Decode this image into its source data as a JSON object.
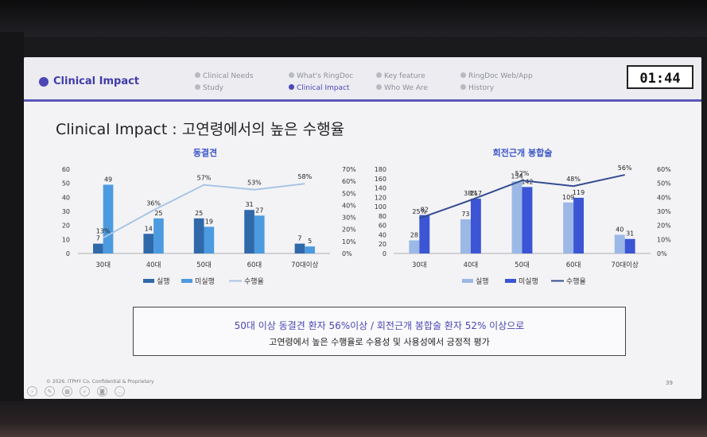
{
  "header": {
    "section_title": "Clinical Impact",
    "nav": [
      {
        "label": "Clinical Needs",
        "active": false
      },
      {
        "label": "Study",
        "active": false
      },
      {
        "label": "What's RingDoc",
        "active": false
      },
      {
        "label": "Clinical Impact",
        "active": true
      },
      {
        "label": "Key feature",
        "active": false
      },
      {
        "label": "Who We Are",
        "active": false
      },
      {
        "label": "RingDoc Web/App",
        "active": false
      },
      {
        "label": "History",
        "active": false
      }
    ],
    "timer": "01:44"
  },
  "slide_title": "Clinical Impact : 고연령에서의 높은 수행율",
  "colors": {
    "accent": "#4b47b6",
    "c1_exec": "#2f69a9",
    "c1_nonexec": "#4c9be0",
    "c1_rate": "#a9c4e4",
    "c2_exec": "#9bb8e6",
    "c2_nonexec": "#3b55d4",
    "c2_rate": "#334c8f"
  },
  "chart_data": [
    {
      "type": "bar",
      "title": "동결견",
      "categories": [
        "30대",
        "40대",
        "50대",
        "60대",
        "70대이상"
      ],
      "series": [
        {
          "name": "실행",
          "values": [
            7,
            14,
            25,
            31,
            7
          ]
        },
        {
          "name": "미실행",
          "values": [
            49,
            25,
            19,
            27,
            5
          ]
        },
        {
          "name": "수행율",
          "type": "line",
          "axis": "right",
          "values": [
            13,
            36,
            57,
            53,
            58
          ],
          "labels": [
            "13%",
            "36%",
            "57%",
            "53%",
            "58%"
          ]
        }
      ],
      "ylim": [
        0,
        60
      ],
      "yticks": [
        "0",
        "10",
        "20",
        "30",
        "40",
        "50",
        "60"
      ],
      "y2lim": [
        0,
        70
      ],
      "y2ticks": [
        "0%",
        "10%",
        "20%",
        "30%",
        "40%",
        "50%",
        "60%",
        "70%"
      ],
      "legend": "bottom"
    },
    {
      "type": "bar",
      "title": "회전근개 봉합술",
      "categories": [
        "30대",
        "40대",
        "50대",
        "60대",
        "70대이상"
      ],
      "series": [
        {
          "name": "실행",
          "values": [
            28,
            73,
            154,
            109,
            40
          ]
        },
        {
          "name": "미실행",
          "values": [
            82,
            117,
            142,
            119,
            31
          ]
        },
        {
          "name": "수행율",
          "type": "line",
          "axis": "right",
          "values": [
            25,
            38,
            52,
            48,
            56
          ],
          "labels": [
            "25%",
            "38%",
            "52%",
            "48%",
            "56%"
          ]
        }
      ],
      "ylim": [
        0,
        180
      ],
      "yticks": [
        "0",
        "20",
        "40",
        "60",
        "80",
        "100",
        "120",
        "140",
        "160",
        "180"
      ],
      "y2lim": [
        0,
        60
      ],
      "y2ticks": [
        "0%",
        "10%",
        "20%",
        "30%",
        "40%",
        "50%",
        "60%"
      ],
      "legend": "bottom"
    }
  ],
  "summary": {
    "line1": "50대 이상 동결견 환자 56%이상 / 회전근개 봉합술 환자 52% 이상으로",
    "line2": "고연령에서 높은 수행율로 수용성 및 사용성에서 긍정적 평가"
  },
  "footer": {
    "copyright": "© 2026. ITPHY Co. Confidential & Proprietary",
    "page": "39"
  },
  "controls": [
    "prev-icon",
    "next-icon",
    "pen-icon",
    "slides-icon",
    "zoom-icon",
    "camera-icon",
    "more-icon"
  ]
}
